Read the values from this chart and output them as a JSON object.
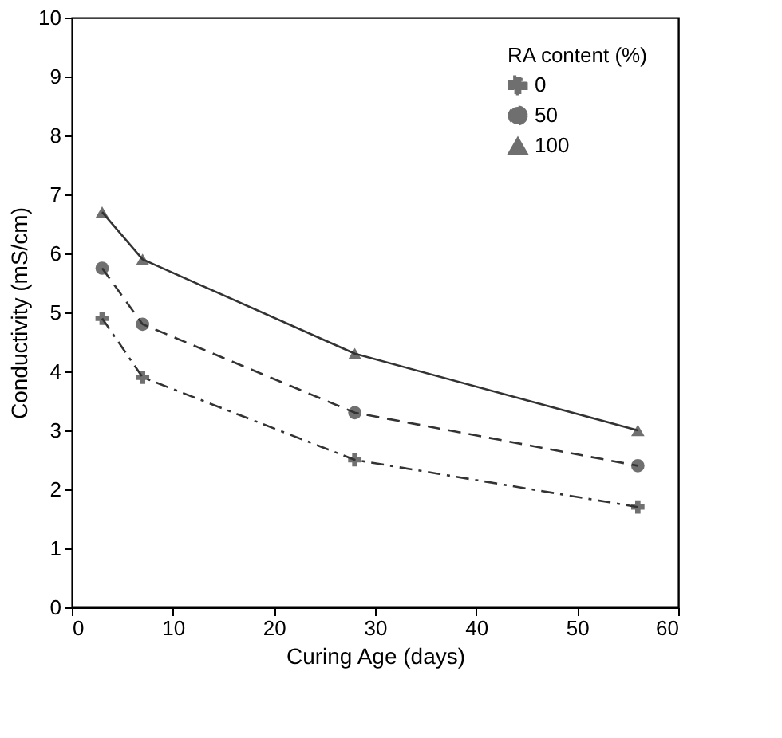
{
  "chart_data": {
    "type": "line",
    "xlabel": "Curing Age (days)",
    "ylabel": "Conductivity (mS/cm)",
    "legend_title": "RA content (%)",
    "x": [
      3,
      7,
      28,
      56
    ],
    "series": [
      {
        "name": "0",
        "color": "#333333",
        "marker": "cross",
        "line_style": "dashdot",
        "values": [
          4.9,
          3.9,
          2.5,
          1.7
        ]
      },
      {
        "name": "50",
        "color": "#333333",
        "marker": "circle",
        "line_style": "dashed",
        "values": [
          5.75,
          4.8,
          3.3,
          2.4
        ]
      },
      {
        "name": "100",
        "color": "#333333",
        "marker": "triangle",
        "line_style": "solid",
        "values": [
          6.7,
          5.9,
          4.3,
          3.0
        ]
      }
    ],
    "xlim": [
      0,
      60
    ],
    "xticks": [
      0,
      10,
      20,
      30,
      40,
      50,
      60
    ],
    "ylim": [
      0,
      10
    ],
    "yticks": [
      0,
      1,
      2,
      3,
      4,
      5,
      6,
      7,
      8,
      9,
      10
    ],
    "grid": false,
    "legend": "top right"
  }
}
